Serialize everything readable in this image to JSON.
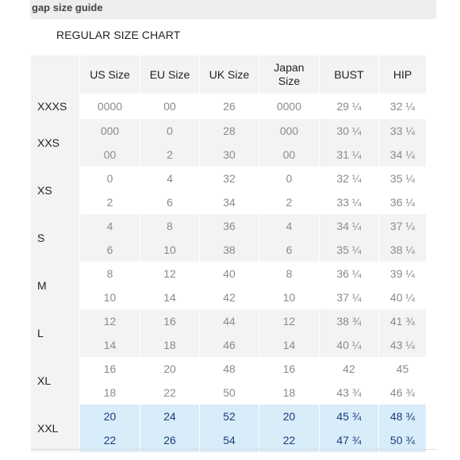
{
  "header": {
    "guide_label": "gap size guide",
    "chart_title": "REGULAR SIZE CHART"
  },
  "columns": [
    "US Size",
    "EU Size",
    "UK Size",
    "Japan Size",
    "BUST",
    "HIP"
  ],
  "groups": [
    {
      "size": "XXXS",
      "highlight": false,
      "shade": "odd",
      "rows": [
        [
          "0000",
          "00",
          "26",
          "0000",
          "29 ¼",
          "32 ¼"
        ]
      ]
    },
    {
      "size": "XXS",
      "highlight": false,
      "shade": "even",
      "rows": [
        [
          "000",
          "0",
          "28",
          "000",
          "30 ¼",
          "33 ¼"
        ],
        [
          "00",
          "2",
          "30",
          "00",
          "31 ¼",
          "34 ¼"
        ]
      ]
    },
    {
      "size": "XS",
      "highlight": false,
      "shade": "odd",
      "rows": [
        [
          "0",
          "4",
          "32",
          "0",
          "32 ¼",
          "35 ¼"
        ],
        [
          "2",
          "6",
          "34",
          "2",
          "33 ¼",
          "36 ¼"
        ]
      ]
    },
    {
      "size": "S",
      "highlight": false,
      "shade": "even",
      "rows": [
        [
          "4",
          "8",
          "36",
          "4",
          "34 ¼",
          "37 ¼"
        ],
        [
          "6",
          "10",
          "38",
          "6",
          "35 ¼",
          "38 ¼"
        ]
      ]
    },
    {
      "size": "M",
      "highlight": false,
      "shade": "odd",
      "rows": [
        [
          "8",
          "12",
          "40",
          "8",
          "36 ¼",
          "39 ¼"
        ],
        [
          "10",
          "14",
          "42",
          "10",
          "37 ¼",
          "40 ¼"
        ]
      ]
    },
    {
      "size": "L",
      "highlight": false,
      "shade": "even",
      "rows": [
        [
          "12",
          "16",
          "44",
          "12",
          "38 ¾",
          "41 ¾"
        ],
        [
          "14",
          "18",
          "46",
          "14",
          "40 ¼",
          "43 ¼"
        ]
      ]
    },
    {
      "size": "XL",
      "highlight": false,
      "shade": "odd",
      "rows": [
        [
          "16",
          "20",
          "48",
          "16",
          "42",
          "45"
        ],
        [
          "18",
          "22",
          "50",
          "18",
          "43 ¾",
          "46 ¾"
        ]
      ]
    },
    {
      "size": "XXL",
      "highlight": true,
      "shade": "odd",
      "rows": [
        [
          "20",
          "24",
          "52",
          "20",
          "45 ¾",
          "48 ¾"
        ],
        [
          "22",
          "26",
          "54",
          "22",
          "47 ¾",
          "50 ¾"
        ]
      ]
    }
  ],
  "colors": {
    "header_bg": "#f3f3f3",
    "highlight_bg": "#d8ecfa",
    "highlight_text": "#1c3d7a",
    "value_text": "#8a8a8a"
  }
}
